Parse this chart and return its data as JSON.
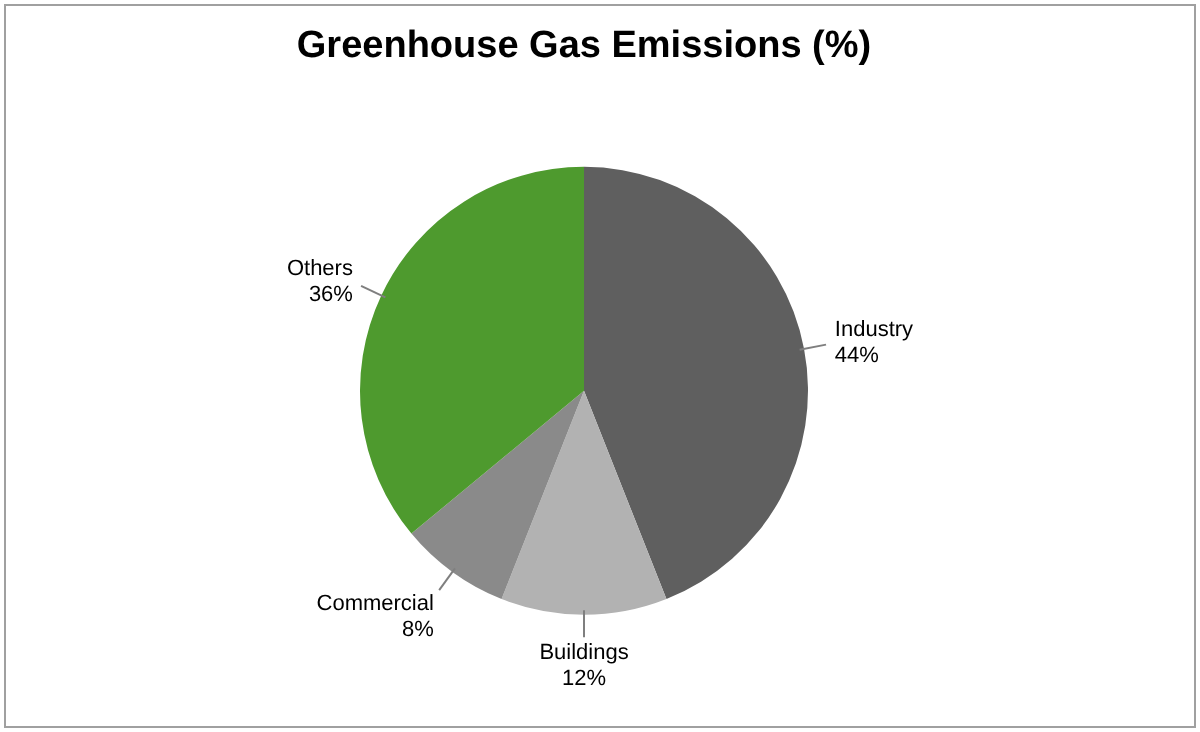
{
  "chart_data": {
    "type": "pie",
    "title": "Greenhouse Gas Emissions (%)",
    "categories": [
      "Industry",
      "Buildings",
      "Commercial",
      "Others"
    ],
    "values": [
      44,
      12,
      8,
      36
    ],
    "value_labels": [
      "44%",
      "12%",
      "8%",
      "36%"
    ],
    "colors": [
      "#5f5f5f",
      "#b2b2b2",
      "#8a8a8a",
      "#4e9a2e"
    ],
    "legend": false
  }
}
